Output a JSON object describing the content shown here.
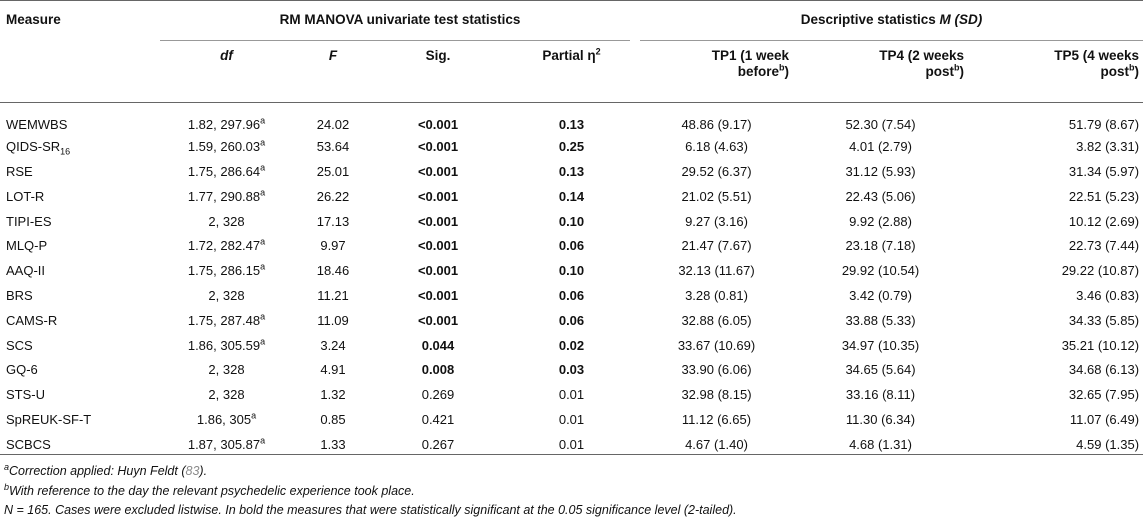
{
  "header": {
    "measure": "Measure",
    "group_left": "RM MANOVA univariate test statistics",
    "group_right_prefix": "Descriptive statistics ",
    "group_right_ital": "M (SD)",
    "df": "df",
    "f": "F",
    "sig": "Sig.",
    "eta_text": "Partial η",
    "eta_sup": "2",
    "tp1_line1": "TP1 (1 week",
    "tp1_line2": "before",
    "tp1_sup": "b",
    "tp1_close": ")",
    "tp4_line1": "TP4 (2 weeks",
    "tp4_line2": "post",
    "tp4_sup": "b",
    "tp4_close": ")",
    "tp5_line1": "TP5 (4 weeks",
    "tp5_line2": "post",
    "tp5_sup": "b",
    "tp5_close": ")"
  },
  "rows": [
    {
      "measure": "WEMWBS",
      "sub": "",
      "df": "1.82, 297.96",
      "df_sup": "a",
      "f": "24.02",
      "sig": "<0.001",
      "sig_bold": true,
      "eta": "0.13",
      "eta_bold": true,
      "tp1": "48.86 (9.17)",
      "tp4": "52.30 (7.54)",
      "tp5": "51.79 (8.67)"
    },
    {
      "measure": "QIDS-SR",
      "sub": "16",
      "df": "1.59, 260.03",
      "df_sup": "a",
      "f": "53.64",
      "sig": "<0.001",
      "sig_bold": true,
      "eta": "0.25",
      "eta_bold": true,
      "tp1": "6.18 (4.63)",
      "tp4": "4.01 (2.79)",
      "tp5": "3.82 (3.31)"
    },
    {
      "measure": "RSE",
      "sub": "",
      "df": "1.75, 286.64",
      "df_sup": "a",
      "f": "25.01",
      "sig": "<0.001",
      "sig_bold": true,
      "eta": "0.13",
      "eta_bold": true,
      "tp1": "29.52 (6.37)",
      "tp4": "31.12 (5.93)",
      "tp5": "31.34 (5.97)"
    },
    {
      "measure": "LOT-R",
      "sub": "",
      "df": "1.77, 290.88",
      "df_sup": "a",
      "f": "26.22",
      "sig": "<0.001",
      "sig_bold": true,
      "eta": "0.14",
      "eta_bold": true,
      "tp1": "21.02 (5.51)",
      "tp4": "22.43 (5.06)",
      "tp5": "22.51 (5.23)"
    },
    {
      "measure": "TIPI-ES",
      "sub": "",
      "df": "2, 328",
      "df_sup": "",
      "f": "17.13",
      "sig": "<0.001",
      "sig_bold": true,
      "eta": "0.10",
      "eta_bold": true,
      "tp1": "9.27 (3.16)",
      "tp4": "9.92 (2.88)",
      "tp5": "10.12 (2.69)"
    },
    {
      "measure": "MLQ-P",
      "sub": "",
      "df": "1.72, 282.47",
      "df_sup": "a",
      "f": "9.97",
      "sig": "<0.001",
      "sig_bold": true,
      "eta": "0.06",
      "eta_bold": true,
      "tp1": "21.47 (7.67)",
      "tp4": "23.18 (7.18)",
      "tp5": "22.73 (7.44)"
    },
    {
      "measure": "AAQ-II",
      "sub": "",
      "df": "1.75, 286.15",
      "df_sup": "a",
      "f": "18.46",
      "sig": "<0.001",
      "sig_bold": true,
      "eta": "0.10",
      "eta_bold": true,
      "tp1": "32.13 (11.67)",
      "tp4": "29.92 (10.54)",
      "tp5": "29.22 (10.87)"
    },
    {
      "measure": "BRS",
      "sub": "",
      "df": "2, 328",
      "df_sup": "",
      "f": "11.21",
      "sig": "<0.001",
      "sig_bold": true,
      "eta": "0.06",
      "eta_bold": true,
      "tp1": "3.28 (0.81)",
      "tp4": "3.42 (0.79)",
      "tp5": "3.46 (0.83)"
    },
    {
      "measure": "CAMS-R",
      "sub": "",
      "df": "1.75, 287.48",
      "df_sup": "a",
      "f": "11.09",
      "sig": "<0.001",
      "sig_bold": true,
      "eta": "0.06",
      "eta_bold": true,
      "tp1": "32.88 (6.05)",
      "tp4": "33.88 (5.33)",
      "tp5": "34.33 (5.85)"
    },
    {
      "measure": "SCS",
      "sub": "",
      "df": "1.86, 305.59",
      "df_sup": "a",
      "f": "3.24",
      "sig": "0.044",
      "sig_bold": true,
      "eta": "0.02",
      "eta_bold": true,
      "tp1": "33.67 (10.69)",
      "tp4": "34.97 (10.35)",
      "tp5": "35.21 (10.12)"
    },
    {
      "measure": "GQ-6",
      "sub": "",
      "df": "2, 328",
      "df_sup": "",
      "f": "4.91",
      "sig": "0.008",
      "sig_bold": true,
      "eta": "0.03",
      "eta_bold": true,
      "tp1": "33.90 (6.06)",
      "tp4": "34.65 (5.64)",
      "tp5": "34.68 (6.13)"
    },
    {
      "measure": "STS-U",
      "sub": "",
      "df": "2, 328",
      "df_sup": "",
      "f": "1.32",
      "sig": "0.269",
      "sig_bold": false,
      "eta": "0.01",
      "eta_bold": false,
      "tp1": "32.98 (8.15)",
      "tp4": "33.16 (8.11)",
      "tp5": "32.65 (7.95)"
    },
    {
      "measure": "SpREUK-SF-T",
      "sub": "",
      "df": "1.86, 305",
      "df_sup": "a",
      "f": "0.85",
      "sig": "0.421",
      "sig_bold": false,
      "eta": "0.01",
      "eta_bold": false,
      "tp1": "11.12 (6.65)",
      "tp4": "11.30 (6.34)",
      "tp5": "11.07 (6.49)"
    },
    {
      "measure": "SCBCS",
      "sub": "",
      "df": "1.87, 305.87",
      "df_sup": "a",
      "f": "1.33",
      "sig": "0.267",
      "sig_bold": false,
      "eta": "0.01",
      "eta_bold": false,
      "tp1": "4.67 (1.40)",
      "tp4": "4.68 (1.31)",
      "tp5": "4.59 (1.35)"
    }
  ],
  "notes": {
    "a_sup": "a",
    "a_text": "Correction applied: Huyn Feldt (",
    "a_ref": "83",
    "a_close": ").",
    "b_sup": "b",
    "b_text": "With reference to the day the relevant psychedelic experience took place.",
    "n_text": "N = 165. Cases were excluded listwise. In bold the measures that were statistically significant at the 0.05 significance level (2-tailed)."
  }
}
